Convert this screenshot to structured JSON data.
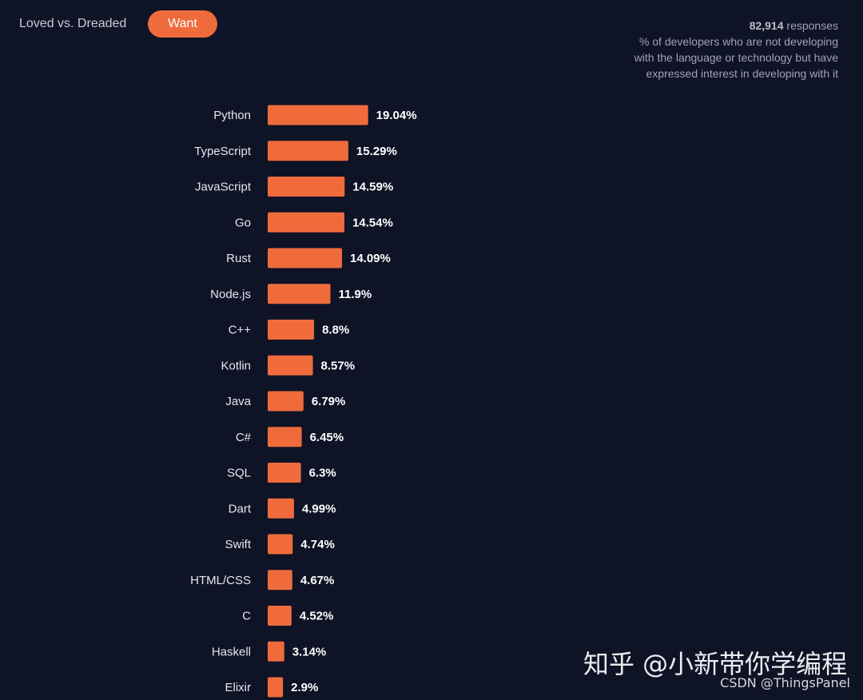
{
  "tabs": {
    "loved_label": "Loved vs. Dreaded",
    "want_label": "Want"
  },
  "info": {
    "responses_count": "82,914",
    "responses_suffix": " responses",
    "description": "% of developers who are not developing with the language or technology but have expressed interest in developing with it"
  },
  "colors": {
    "bar": "#ef6b3c",
    "background": "#0f1326"
  },
  "chart_data": {
    "type": "bar",
    "orientation": "horizontal",
    "categories": [
      "Python",
      "TypeScript",
      "JavaScript",
      "Go",
      "Rust",
      "Node.js",
      "C++",
      "Kotlin",
      "Java",
      "C#",
      "SQL",
      "Dart",
      "Swift",
      "HTML/CSS",
      "C",
      "Haskell",
      "Elixir"
    ],
    "values": [
      19.04,
      15.29,
      14.59,
      14.54,
      14.09,
      11.9,
      8.8,
      8.57,
      6.79,
      6.45,
      6.3,
      4.99,
      4.74,
      4.67,
      4.52,
      3.14,
      2.9
    ],
    "value_labels": [
      "19.04%",
      "15.29%",
      "14.59%",
      "14.54%",
      "14.09%",
      "11.9%",
      "8.8%",
      "8.57%",
      "6.79%",
      "6.45%",
      "6.3%",
      "4.99%",
      "4.74%",
      "4.67%",
      "4.52%",
      "3.14%",
      "2.9%"
    ],
    "title": "",
    "xlabel": "",
    "ylabel": "",
    "grid": false,
    "legend": "none"
  },
  "watermarks": {
    "zhihu": "知乎 @小新带你学编程",
    "csdn": "CSDN @ThingsPanel"
  }
}
